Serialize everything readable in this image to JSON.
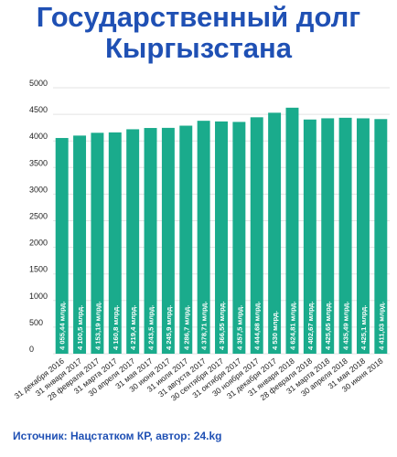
{
  "title_line1": "Государственный долг",
  "title_line2": "Кыргызстана",
  "source": "Источник: Нацстатком КР, автор: 24.kg",
  "colors": {
    "bar": "#1aab8c",
    "title": "#1f50b4",
    "grid": "#e3e3e3",
    "axis_text": "#222222"
  },
  "chart_data": {
    "type": "bar",
    "ylim": [
      0,
      5000
    ],
    "yticks": [
      0,
      500,
      1000,
      1500,
      2000,
      2500,
      3000,
      3500,
      4000,
      4500,
      5000
    ],
    "grid": true,
    "categories": [
      "31 декабря 2016",
      "31 января 2017",
      "28 февраля 2017",
      "31 марта 2017",
      "30 апреля 2017",
      "31 мая 2017",
      "30 июня 2017",
      "31 июля 2017",
      "31 августа 2017",
      "30 сентября 2017",
      "31 октября 2017",
      "30 ноября 2017",
      "31 декабря 2017",
      "31 января 2018",
      "28 февраля 2018",
      "31 марта 2018",
      "30 апреля 2018",
      "31 мая 2018",
      "30 июня 2018"
    ],
    "values": [
      4055.44,
      4100.5,
      4153.19,
      4160.8,
      4219.4,
      4243.5,
      4245.9,
      4286.7,
      4378.71,
      4366.55,
      4357.5,
      4444.68,
      4530,
      4624.81,
      4402.67,
      4425.65,
      4435.49,
      4425.1,
      4411.03
    ],
    "labels": [
      "4 055,44 млрд.",
      "4 100,5 млрд.",
      "4 153,19 млрд.",
      "4 160,8 млрд.",
      "4 219,4 млрд.",
      "4 243,5 млрд.",
      "4 245,9 млрд.",
      "4 286,7 млрд.",
      "4 378,71 млрд.",
      "4 366,55 млрд.",
      "4 357,5 млрд.",
      "4 444,68 млрд.",
      "4 530 млрд.",
      "4 624,81 млрд.",
      "4 402,67 млрд.",
      "4 425,65 млрд.",
      "4 435,49 млрд.",
      "4 425,1 млрд.",
      "4 411,03 млрд."
    ]
  }
}
